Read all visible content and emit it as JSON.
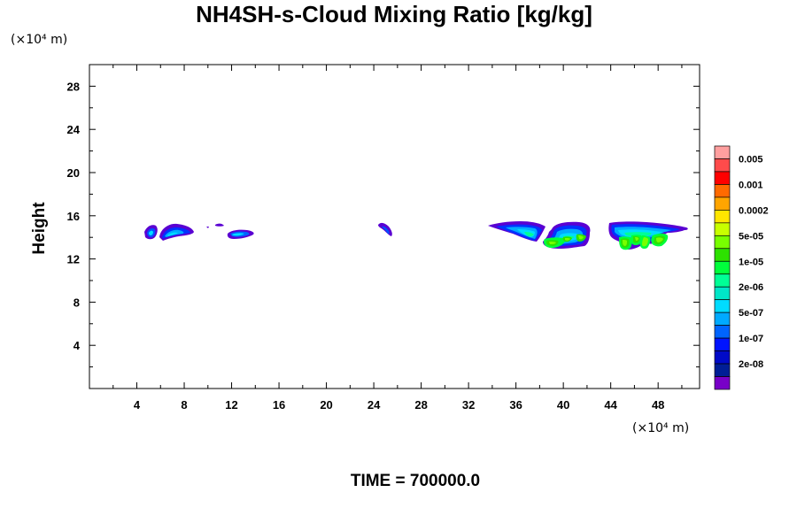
{
  "chart_data": {
    "type": "heatmap",
    "title": "NH4SH-s-Cloud Mixing Ratio [kg/kg]",
    "ylabel": "Height",
    "x_unit": "(×10⁴ m)",
    "y_unit": "(×10⁴ m)",
    "xlim": [
      0,
      51.5
    ],
    "ylim": [
      0,
      30
    ],
    "xticks": [
      4,
      8,
      12,
      16,
      20,
      24,
      28,
      32,
      36,
      40,
      44,
      48
    ],
    "yticks": [
      4,
      8,
      12,
      16,
      20,
      24,
      28
    ],
    "xtick_labels": [
      "4",
      "8",
      "12",
      "16",
      "20",
      "24",
      "28",
      "32",
      "36",
      "40",
      "44",
      "48"
    ],
    "ytick_labels": [
      "4",
      "8",
      "12",
      "16",
      "20",
      "24",
      "28"
    ],
    "colorbar": {
      "colors": [
        "#ff9f9f",
        "#ff4b4b",
        "#ff0000",
        "#ff6a00",
        "#ffa500",
        "#ffe600",
        "#c8ff00",
        "#78ff00",
        "#2de100",
        "#00ff3c",
        "#00ff96",
        "#00e6c8",
        "#00dcff",
        "#00aaff",
        "#0064ff",
        "#0014ff",
        "#000ac8",
        "#001e96",
        "#7800c8"
      ],
      "labels": [
        "0.005",
        "0.001",
        "0.0002",
        "5e-05",
        "1e-05",
        "2e-06",
        "5e-07",
        "1e-07",
        "2e-08"
      ]
    },
    "clouds": [
      {
        "x": [
          4.9,
          5.9
        ],
        "z": [
          13.7,
          15.3
        ],
        "peak": "5e-07"
      },
      {
        "x": [
          6.0,
          8.9
        ],
        "z": [
          13.6,
          15.3
        ],
        "peak": "5e-07"
      },
      {
        "x": [
          9.9,
          10.9
        ],
        "z": [
          14.9,
          15.4
        ],
        "peak": "2e-08"
      },
      {
        "x": [
          11.8,
          13.9
        ],
        "z": [
          13.8,
          14.7
        ],
        "peak": "5e-07"
      },
      {
        "x": [
          24.1,
          25.4
        ],
        "z": [
          14.0,
          15.3
        ],
        "peak": "1e-07"
      },
      {
        "x": [
          32.8,
          37.6
        ],
        "z": [
          13.5,
          15.4
        ],
        "peak": "2e-06"
      },
      {
        "x": [
          37.9,
          42.3
        ],
        "z": [
          12.8,
          15.5
        ],
        "peak": "1e-05"
      },
      {
        "x": [
          43.3,
          50.4
        ],
        "z": [
          12.8,
          15.5
        ],
        "peak": "1e-05"
      }
    ],
    "grid": false
  },
  "footer": {
    "time_label": "TIME = 700000.0"
  }
}
